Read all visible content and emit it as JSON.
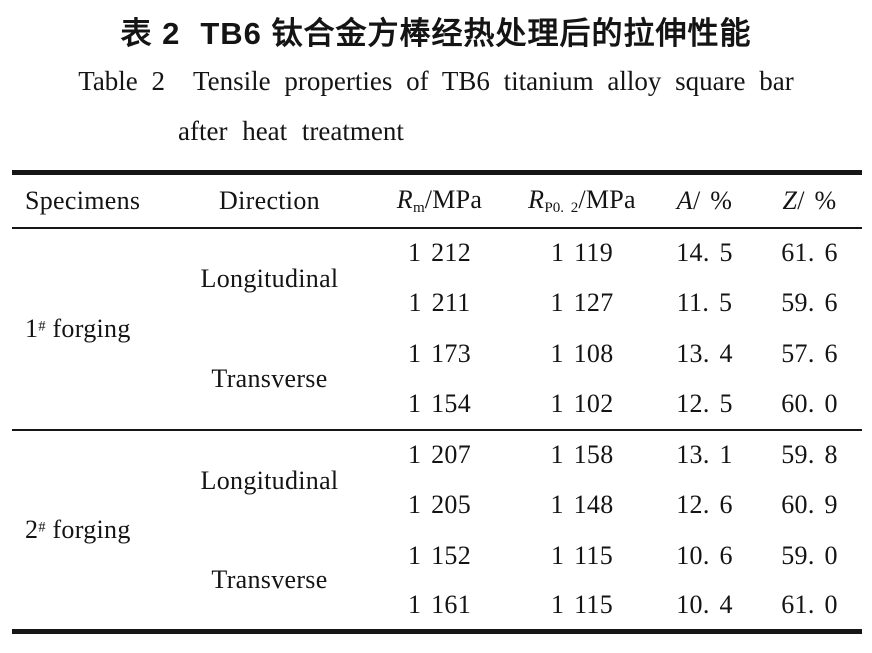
{
  "title": {
    "zh_label": "表 2",
    "zh_text": "TB6 钛合金方棒经热处理后的拉伸性能",
    "en_label": "Table 2",
    "en_line1": "Tensile properties of TB6 titanium alloy square bar",
    "en_line2": "after heat treatment"
  },
  "table": {
    "headers": {
      "specimens": "Specimens",
      "direction": "Direction",
      "rm": {
        "base": "R",
        "sub": "m",
        "unit": "/MPa"
      },
      "rp": {
        "base": "R",
        "sub": "P0. 2",
        "unit": "/MPa"
      },
      "a": {
        "base": "A",
        "unit": "/ %"
      },
      "z": {
        "base": "Z",
        "unit": "/ %"
      }
    },
    "groups": [
      {
        "specimen": {
          "num": "1",
          "sup": "#",
          "label": "forging"
        },
        "directions": [
          {
            "label": "Longitudinal",
            "rows": [
              {
                "rm": "1 212",
                "rp": "1 119",
                "a": "14. 5",
                "z": "61. 6"
              },
              {
                "rm": "1 211",
                "rp": "1 127",
                "a": "11. 5",
                "z": "59. 6"
              }
            ]
          },
          {
            "label": "Transverse",
            "rows": [
              {
                "rm": "1 173",
                "rp": "1 108",
                "a": "13. 4",
                "z": "57. 6"
              },
              {
                "rm": "1 154",
                "rp": "1 102",
                "a": "12. 5",
                "z": "60. 0"
              }
            ]
          }
        ]
      },
      {
        "specimen": {
          "num": "2",
          "sup": "#",
          "label": "forging"
        },
        "directions": [
          {
            "label": "Longitudinal",
            "rows": [
              {
                "rm": "1 207",
                "rp": "1 158",
                "a": "13. 1",
                "z": "59. 8"
              },
              {
                "rm": "1 205",
                "rp": "1 148",
                "a": "12. 6",
                "z": "60. 9"
              }
            ]
          },
          {
            "label": "Transverse",
            "rows": [
              {
                "rm": "1 152",
                "rp": "1 115",
                "a": "10. 6",
                "z": "59. 0"
              },
              {
                "rm": "1 161",
                "rp": "1 115",
                "a": "10. 4",
                "z": "61. 0"
              }
            ]
          }
        ]
      }
    ]
  }
}
